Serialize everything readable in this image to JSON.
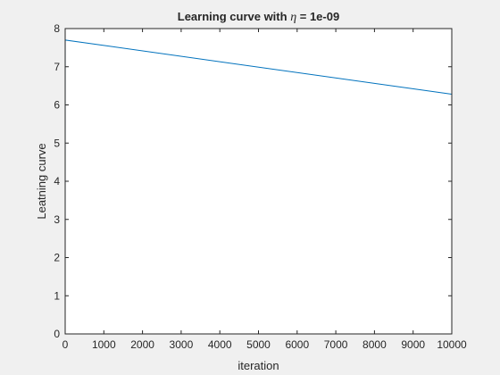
{
  "chart_data": {
    "type": "line",
    "title": {
      "prefix": "Learning curve with ",
      "symbol": "η",
      "suffix": " = 1e-09"
    },
    "xlabel": "iteration",
    "ylabel": "Leatning curve",
    "xlim": [
      0,
      10000
    ],
    "ylim": [
      0,
      8
    ],
    "xticks": [
      0,
      1000,
      2000,
      3000,
      4000,
      5000,
      6000,
      7000,
      8000,
      9000,
      10000
    ],
    "xtick_labels": [
      "0",
      "1000",
      "2000",
      "3000",
      "4000",
      "5000",
      "6000",
      "7000",
      "8000",
      "9000",
      "10000"
    ],
    "yticks": [
      0,
      1,
      2,
      3,
      4,
      5,
      6,
      7,
      8
    ],
    "ytick_labels": [
      "0",
      "1",
      "2",
      "3",
      "4",
      "5",
      "6",
      "7",
      "8"
    ],
    "grid": false,
    "series": [
      {
        "color": "#0072bd",
        "x": [
          0,
          1,
          10000
        ],
        "y": [
          0,
          7.7,
          6.28
        ]
      }
    ]
  }
}
